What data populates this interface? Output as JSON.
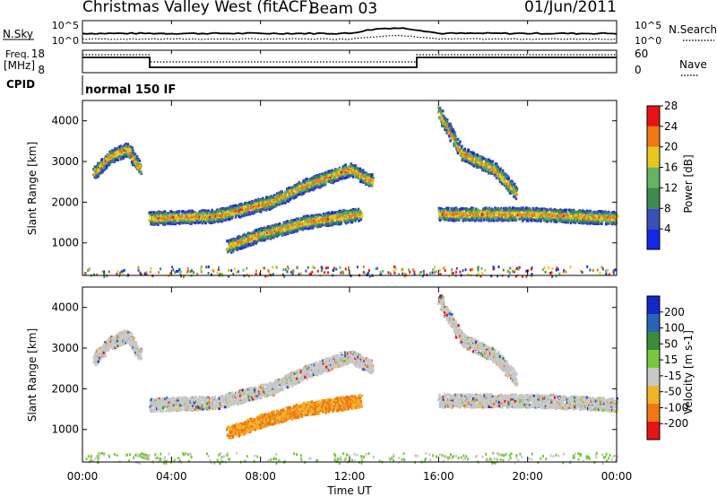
{
  "header": {
    "station": "Christmas Valley West (fitACF)",
    "beam": "Beam 03",
    "date": "01/Jun/2011"
  },
  "time_axis": {
    "label": "Time UT",
    "ticks": [
      "00:00",
      "04:00",
      "08:00",
      "12:00",
      "16:00",
      "20:00",
      "00:00"
    ],
    "range_hours": [
      0,
      24
    ]
  },
  "top_panels": {
    "nsky_label": "N.Sky",
    "nsearch_label": "N.Search",
    "nsky_ticks": [
      "10^5",
      "10^0"
    ],
    "nsearch_ticks": [
      "10^5",
      "10^0"
    ],
    "freq_label_line1": "Freq.",
    "freq_label_line2": "[MHz]",
    "freq_ticks": [
      "18",
      "8"
    ],
    "nave_label": "Nave",
    "nave_ticks": [
      "60",
      "0"
    ],
    "cpid_label": "CPID",
    "cpid_text": "normal 150 IF"
  },
  "chart_data": [
    {
      "type": "heatmap",
      "title": "",
      "ylabel": "Slant Range [km]",
      "xlabel": "",
      "x_range_hours": [
        0,
        24
      ],
      "ylim": [
        200,
        4500
      ],
      "y_ticks": [
        "1000",
        "2000",
        "3000",
        "4000"
      ],
      "colorbar": {
        "label": "Power [dB]",
        "ticks": [
          "4",
          "8",
          "12",
          "16",
          "20",
          "24",
          "28"
        ],
        "range": [
          0,
          32
        ],
        "colors": [
          "#1428e6",
          "#3c50b4",
          "#3c8c50",
          "#64b464",
          "#e6c81e",
          "#f07814",
          "#e61414"
        ]
      },
      "bands": [
        {
          "name": "early-echoes",
          "points": [
            [
              0.5,
              2700
            ],
            [
              1.2,
              3100
            ],
            [
              2.0,
              3300
            ],
            [
              2.6,
              2800
            ]
          ]
        },
        {
          "name": "main-rising-band",
          "points": [
            [
              3.0,
              1600
            ],
            [
              6.0,
              1650
            ],
            [
              8.5,
              2000
            ],
            [
              10.0,
              2400
            ],
            [
              12.0,
              2800
            ],
            [
              13.0,
              2500
            ]
          ]
        },
        {
          "name": "lower-band",
          "points": [
            [
              6.5,
              900
            ],
            [
              8.0,
              1200
            ],
            [
              10.0,
              1500
            ],
            [
              12.5,
              1700
            ]
          ]
        },
        {
          "name": "afternoon-band",
          "points": [
            [
              16.0,
              4200
            ],
            [
              17.0,
              3200
            ],
            [
              18.5,
              2800
            ],
            [
              19.5,
              2200
            ]
          ]
        },
        {
          "name": "evening-band",
          "points": [
            [
              16.0,
              1700
            ],
            [
              20.0,
              1700
            ],
            [
              24.0,
              1600
            ]
          ]
        }
      ]
    },
    {
      "type": "heatmap",
      "title": "",
      "ylabel": "Slant Range [km]",
      "xlabel": "Time UT",
      "x_range_hours": [
        0,
        24
      ],
      "ylim": [
        200,
        4500
      ],
      "y_ticks": [
        "1000",
        "2000",
        "3000",
        "4000"
      ],
      "colorbar": {
        "label": "Velocity [m s-1]",
        "ticks": [
          "200",
          "100",
          "50",
          "15",
          "-15",
          "-50",
          "-100",
          "-200"
        ],
        "colors": [
          "#1428c8",
          "#2864b4",
          "#3c8c3c",
          "#78c83c",
          "#c8c8c8",
          "#f0b428",
          "#f07814",
          "#e61414"
        ]
      }
    }
  ]
}
